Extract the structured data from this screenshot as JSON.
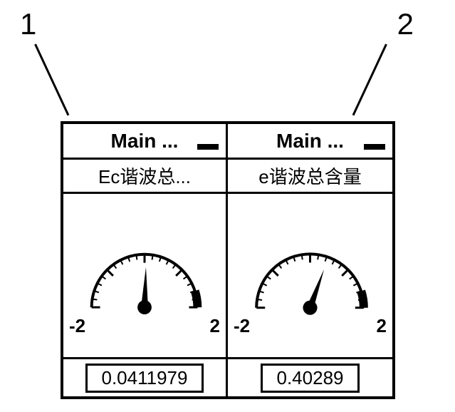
{
  "callouts": {
    "label1": "1",
    "label2": "2"
  },
  "gauges": [
    {
      "title": "Main ...",
      "subtitle": "Ec谐波总...",
      "scale_min": "-2",
      "scale_max": "2",
      "value": "0.0411979",
      "needle_angle": -88,
      "needle_color": "#000000",
      "arc_color": "#000000",
      "tick_color": "#000000"
    },
    {
      "title": "Main ...",
      "subtitle": "e谐波总含量",
      "scale_min": "-2",
      "scale_max": "2",
      "value": "0.40289",
      "needle_angle": -70,
      "needle_color": "#000000",
      "arc_color": "#000000",
      "tick_color": "#000000"
    }
  ],
  "styling": {
    "background": "#ffffff",
    "border_color": "#000000",
    "text_color": "#000000",
    "title_fontsize": 28,
    "subtitle_fontsize": 26,
    "value_fontsize": 26,
    "callout_fontsize": 42
  }
}
